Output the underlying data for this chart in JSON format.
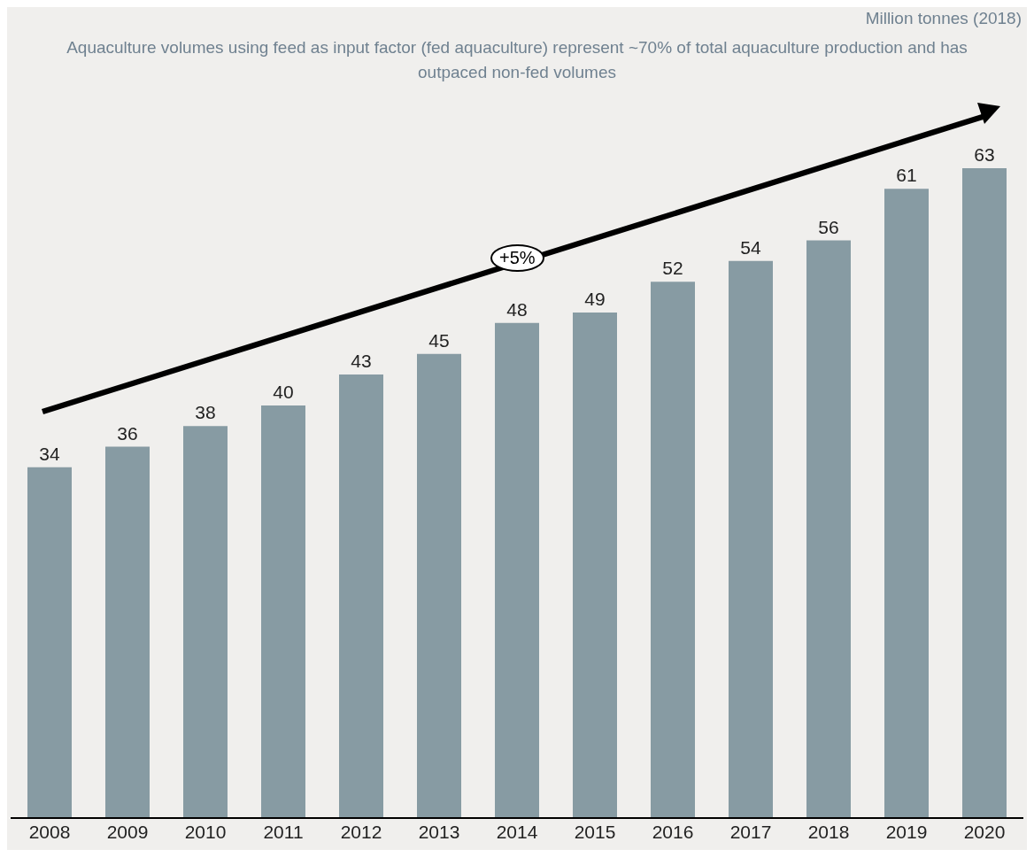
{
  "chart_data": {
    "type": "bar",
    "title": "Million tonnes (2018)",
    "subtitle": "Aquaculture volumes using feed as input factor (fed aquaculture) represent ~70% of total aquaculture production and has outpaced non-fed volumes",
    "categories": [
      "2008",
      "2009",
      "2010",
      "2011",
      "2012",
      "2013",
      "2014",
      "2015",
      "2016",
      "2017",
      "2018",
      "2019",
      "2020"
    ],
    "values": [
      34,
      36,
      38,
      40,
      43,
      45,
      48,
      49,
      52,
      54,
      56,
      61,
      63
    ],
    "color": "#879ba3",
    "data_labels": true,
    "annotations": [
      "+5%"
    ]
  }
}
